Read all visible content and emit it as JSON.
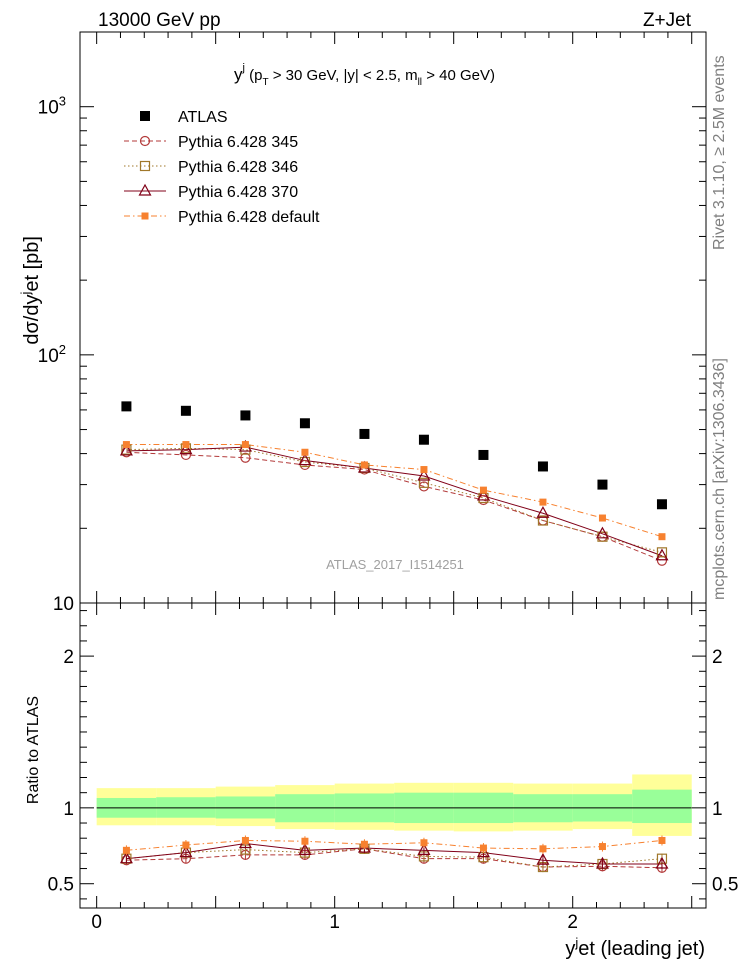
{
  "header": {
    "left": "13000 GeV pp",
    "right": "Z+Jet"
  },
  "side_text": {
    "rivet": "Rivet 3.1.10, ≥ 2.5M events",
    "mcplots": "mcplots.cern.ch [arXiv:1306.3436]"
  },
  "plot_title": {
    "main": "y",
    "main_sup": "j",
    "cuts_pre": " (p",
    "cuts_sub1": "T",
    "cuts_mid": " > 30 GeV, |y| < 2.5, m",
    "cuts_sub2": "ll",
    "cuts_post": " > 40 GeV)"
  },
  "watermark": "ATLAS_2017_I1514251",
  "chart_data": [
    {
      "type": "scatter",
      "panel": "main",
      "ylabel": "dσ/dy^jet [pb]",
      "yscale": "log",
      "ylim": [
        10,
        2000
      ],
      "xlim": [
        -0.07,
        2.56
      ],
      "y_ticklabels": [
        "10",
        "10^2",
        "10^3"
      ],
      "x": [
        0.125,
        0.375,
        0.625,
        0.875,
        1.125,
        1.375,
        1.625,
        1.875,
        2.125,
        2.375
      ],
      "series": [
        {
          "name": "ATLAS",
          "color": "#000000",
          "marker": "filled-square",
          "line": "none",
          "values": [
            62,
            59.5,
            57,
            53,
            48,
            45.5,
            39.5,
            35.5,
            30,
            25
          ]
        },
        {
          "name": "Pythia 6.428 345",
          "color": "#b33a3a",
          "marker": "open-circle",
          "line": "dashed",
          "values": [
            40.5,
            39.5,
            38.5,
            36,
            34.5,
            29.5,
            26,
            21.5,
            18.5,
            14.8
          ]
        },
        {
          "name": "Pythia 6.428 346",
          "color": "#a0772a",
          "marker": "open-square",
          "line": "dotted",
          "values": [
            41.5,
            42,
            41.5,
            37,
            35,
            30.5,
            26.5,
            21.5,
            18.5,
            16
          ]
        },
        {
          "name": "Pythia 6.428 370",
          "color": "#800018",
          "marker": "open-triangle",
          "line": "solid",
          "values": [
            41,
            41.5,
            42.5,
            37.5,
            35,
            32.5,
            27,
            23,
            19,
            15.5
          ]
        },
        {
          "name": "Pythia 6.428 default",
          "color": "#f7812f",
          "marker": "filled-square-small",
          "line": "dashdot",
          "values": [
            43.5,
            43.5,
            43.5,
            40.5,
            36,
            34.5,
            28.5,
            25.5,
            22,
            18.5
          ]
        }
      ]
    },
    {
      "type": "line",
      "panel": "ratio",
      "ylabel": "Ratio to ATLAS",
      "xlabel": "y^jet (leading jet)",
      "ylim": [
        0.34,
        2.35
      ],
      "xlim": [
        -0.07,
        2.56
      ],
      "y_ticklabels": [
        "0.5",
        "1",
        "2"
      ],
      "x_ticklabels": [
        "0",
        "1",
        "2"
      ],
      "bins": [
        0,
        0.25,
        0.5,
        0.75,
        1.0,
        1.25,
        1.5,
        1.75,
        2.0,
        2.25,
        2.5
      ],
      "band_outer": {
        "color": "#ffff99",
        "low": [
          0.885,
          0.885,
          0.88,
          0.86,
          0.855,
          0.85,
          0.845,
          0.85,
          0.86,
          0.815
        ],
        "high": [
          1.13,
          1.13,
          1.14,
          1.15,
          1.16,
          1.165,
          1.165,
          1.16,
          1.16,
          1.22
        ]
      },
      "band_inner": {
        "color": "#99ff99",
        "low": [
          0.935,
          0.935,
          0.93,
          0.905,
          0.905,
          0.9,
          0.9,
          0.905,
          0.91,
          0.9
        ],
        "high": [
          1.065,
          1.07,
          1.075,
          1.09,
          1.095,
          1.1,
          1.1,
          1.09,
          1.09,
          1.12
        ]
      },
      "x": [
        0.125,
        0.375,
        0.625,
        0.875,
        1.125,
        1.375,
        1.625,
        1.875,
        2.125,
        2.375
      ],
      "series": [
        {
          "name": "Pythia 6.428 345",
          "values": [
            0.655,
            0.665,
            0.69,
            0.69,
            0.73,
            0.665,
            0.665,
            0.61,
            0.615,
            0.605
          ]
        },
        {
          "name": "Pythia 6.428 346",
          "values": [
            0.665,
            0.705,
            0.725,
            0.705,
            0.73,
            0.68,
            0.675,
            0.61,
            0.63,
            0.665
          ]
        },
        {
          "name": "Pythia 6.428 370",
          "values": [
            0.665,
            0.705,
            0.765,
            0.72,
            0.735,
            0.72,
            0.705,
            0.655,
            0.63,
            0.63
          ]
        },
        {
          "name": "Pythia 6.428 default",
          "values": [
            0.72,
            0.755,
            0.785,
            0.78,
            0.76,
            0.77,
            0.735,
            0.73,
            0.745,
            0.785
          ]
        }
      ]
    }
  ]
}
